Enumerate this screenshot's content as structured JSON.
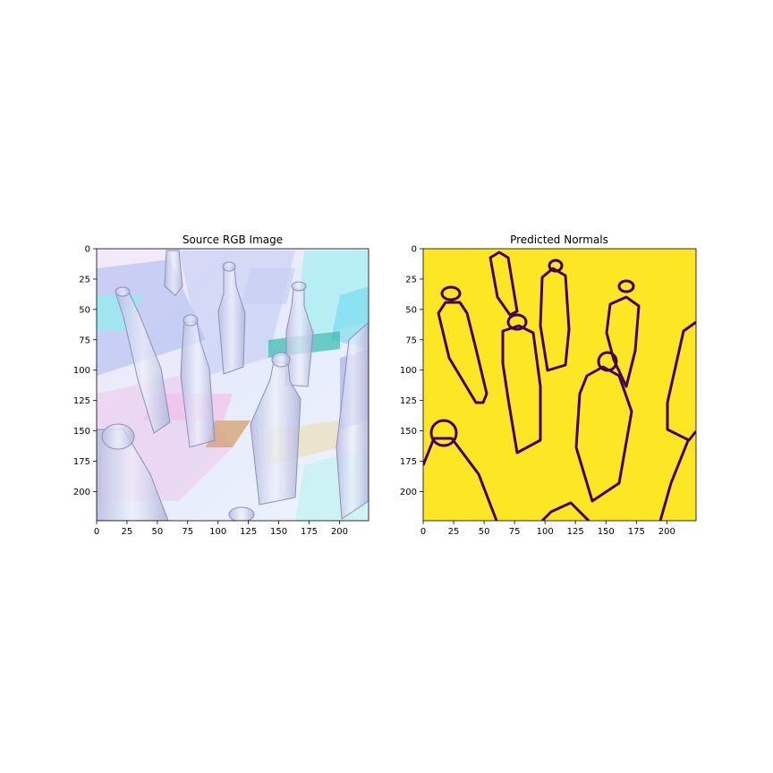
{
  "chart_data": [
    {
      "type": "image",
      "title": "Source RGB Image",
      "xlim": [
        0,
        224
      ],
      "ylim": [
        224,
        0
      ],
      "x_ticks": [
        0,
        25,
        50,
        75,
        100,
        125,
        150,
        175,
        200
      ],
      "y_ticks": [
        0,
        25,
        50,
        75,
        100,
        125,
        150,
        175,
        200
      ],
      "content": "photo of glass bottles on pastel background",
      "colors": {
        "bg": "#eaeefa",
        "glass": "#c9cde6",
        "accent_cyan": "#8ff0ee",
        "accent_pink": "#f0b8e8",
        "accent_blue": "#a9b6f0",
        "teal": "#3fbfb0"
      }
    },
    {
      "type": "heatmap",
      "title": "Predicted Normals",
      "xlim": [
        0,
        224
      ],
      "ylim": [
        224,
        0
      ],
      "x_ticks": [
        0,
        25,
        50,
        75,
        100,
        125,
        150,
        175,
        200
      ],
      "y_ticks": [
        0,
        25,
        50,
        75,
        100,
        125,
        150,
        175,
        200
      ],
      "colormap": "viridis",
      "colors": {
        "background": "#fde725",
        "edges": "#440154"
      }
    }
  ]
}
